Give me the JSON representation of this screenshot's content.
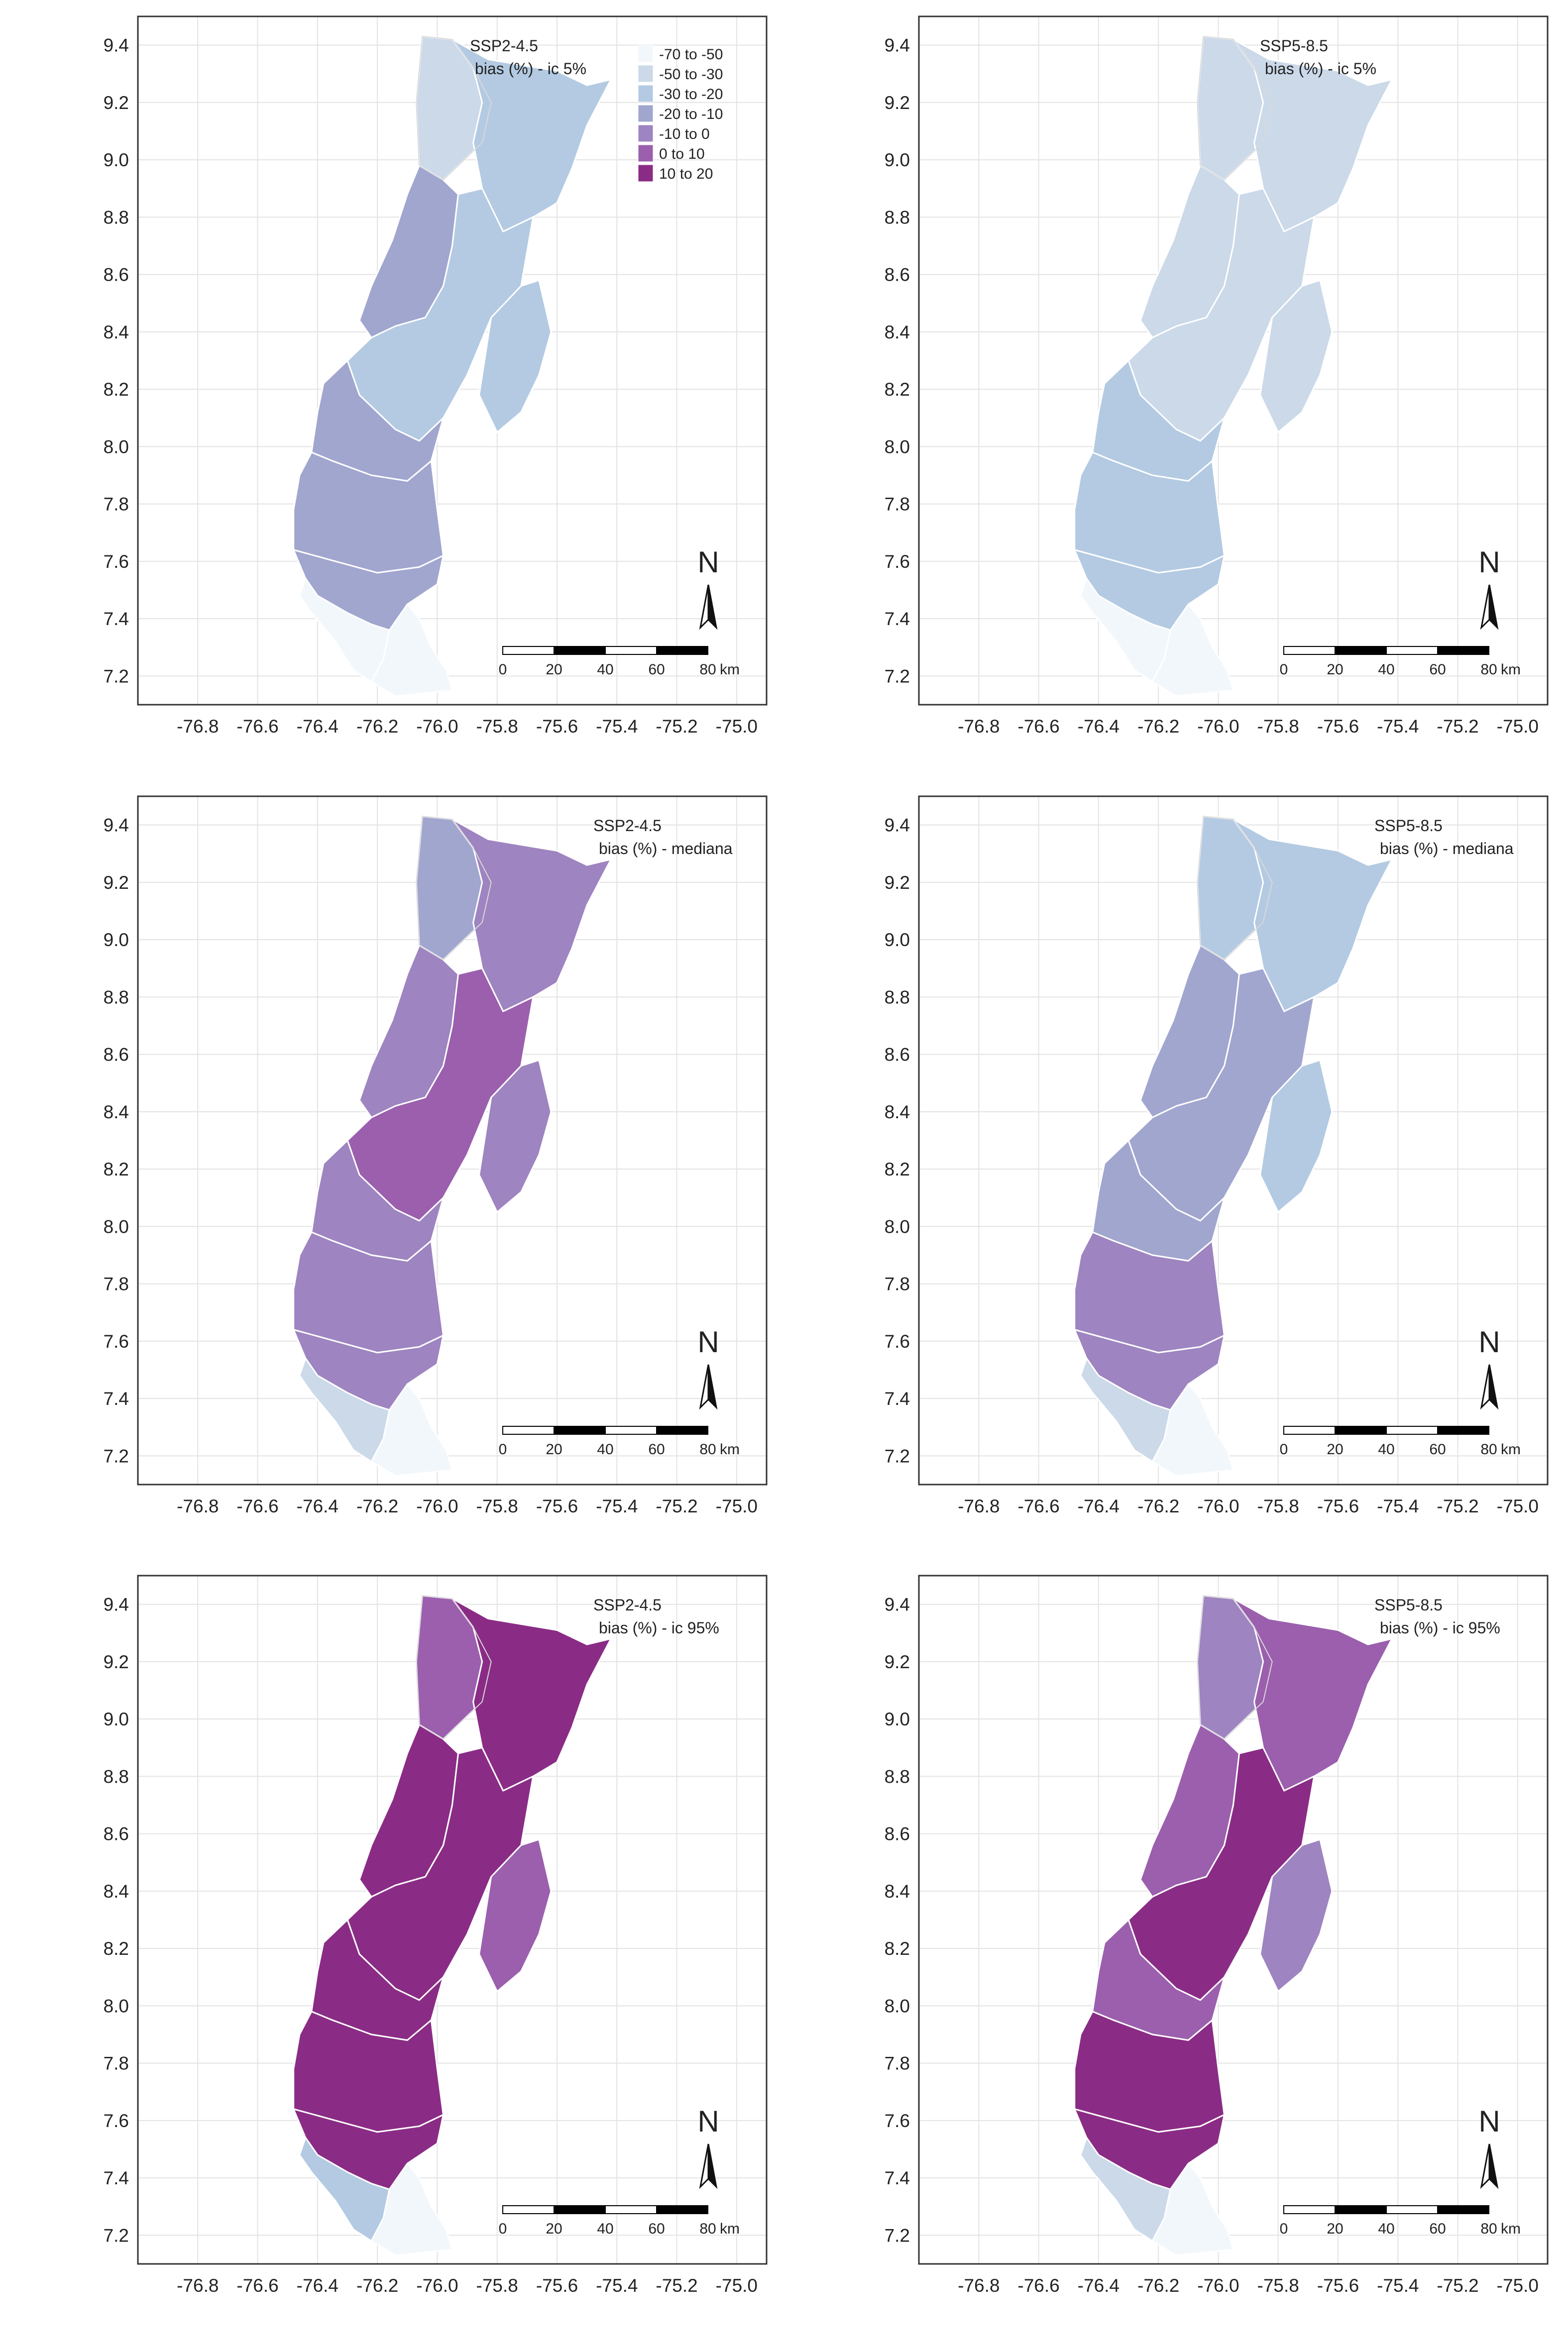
{
  "x_ticks": [
    "-76.8",
    "-76.6",
    "-76.4",
    "-76.2",
    "-76.0",
    "-75.8",
    "-75.6",
    "-75.4",
    "-75.2",
    "-75.0"
  ],
  "y_ticks": [
    "9.4",
    "9.2",
    "9.0",
    "8.8",
    "8.6",
    "8.4",
    "8.2",
    "8.0",
    "7.8",
    "7.6",
    "7.4",
    "7.2"
  ],
  "x_range": [
    -77.0,
    -74.9
  ],
  "y_range": [
    7.1,
    9.5
  ],
  "legend": {
    "classes": [
      {
        "label": "-70 to -50",
        "color": "#f2f7fb"
      },
      {
        "label": "-50 to -30",
        "color": "#cbd9e9"
      },
      {
        "label": "-30 to -20",
        "color": "#b3cae2"
      },
      {
        "label": "-20 to -10",
        "color": "#a1a6cf"
      },
      {
        "label": "-10 to 0",
        "color": "#9e84c0"
      },
      {
        "label": "0 to 10",
        "color": "#9b5fae"
      },
      {
        "label": "10 to 20",
        "color": "#8a2c85"
      }
    ]
  },
  "north_label": "N",
  "scalebar": {
    "ticks": [
      "0",
      "20",
      "40",
      "60",
      "80"
    ],
    "unit": "km"
  },
  "panels": [
    {
      "scenario": "SSP2-4.5",
      "subtitle": "bias (%) - ic 5%",
      "fills": {
        "north_w": 1,
        "north_e": 2,
        "mid_w": 3,
        "mid_c": 2,
        "mid_e": 2,
        "south_n": 3,
        "south_m": 3,
        "south_s": 3,
        "tip_l": 0,
        "tip_r": 0
      }
    },
    {
      "scenario": "SSP5-8.5",
      "subtitle": "bias (%) - ic 5%",
      "fills": {
        "north_w": 1,
        "north_e": 1,
        "mid_w": 1,
        "mid_c": 1,
        "mid_e": 1,
        "south_n": 2,
        "south_m": 2,
        "south_s": 2,
        "tip_l": 0,
        "tip_r": 0
      }
    },
    {
      "scenario": "SSP2-4.5",
      "subtitle": "bias (%) - mediana",
      "fills": {
        "north_w": 3,
        "north_e": 4,
        "mid_w": 4,
        "mid_c": 5,
        "mid_e": 4,
        "south_n": 4,
        "south_m": 4,
        "south_s": 4,
        "tip_l": 1,
        "tip_r": 0
      }
    },
    {
      "scenario": "SSP5-8.5",
      "subtitle": "bias (%) - mediana",
      "fills": {
        "north_w": 2,
        "north_e": 2,
        "mid_w": 3,
        "mid_c": 3,
        "mid_e": 2,
        "south_n": 3,
        "south_m": 4,
        "south_s": 4,
        "tip_l": 1,
        "tip_r": 0
      }
    },
    {
      "scenario": "SSP2-4.5",
      "subtitle": "bias (%) - ic 95%",
      "fills": {
        "north_w": 5,
        "north_e": 6,
        "mid_w": 6,
        "mid_c": 6,
        "mid_e": 5,
        "south_n": 6,
        "south_m": 6,
        "south_s": 6,
        "tip_l": 2,
        "tip_r": 0
      }
    },
    {
      "scenario": "SSP5-8.5",
      "subtitle": "bias (%) - ic 95%",
      "fills": {
        "north_w": 4,
        "north_e": 5,
        "mid_w": 5,
        "mid_c": 6,
        "mid_e": 4,
        "south_n": 5,
        "south_m": 6,
        "south_s": 6,
        "tip_l": 1,
        "tip_r": 0
      }
    }
  ]
}
